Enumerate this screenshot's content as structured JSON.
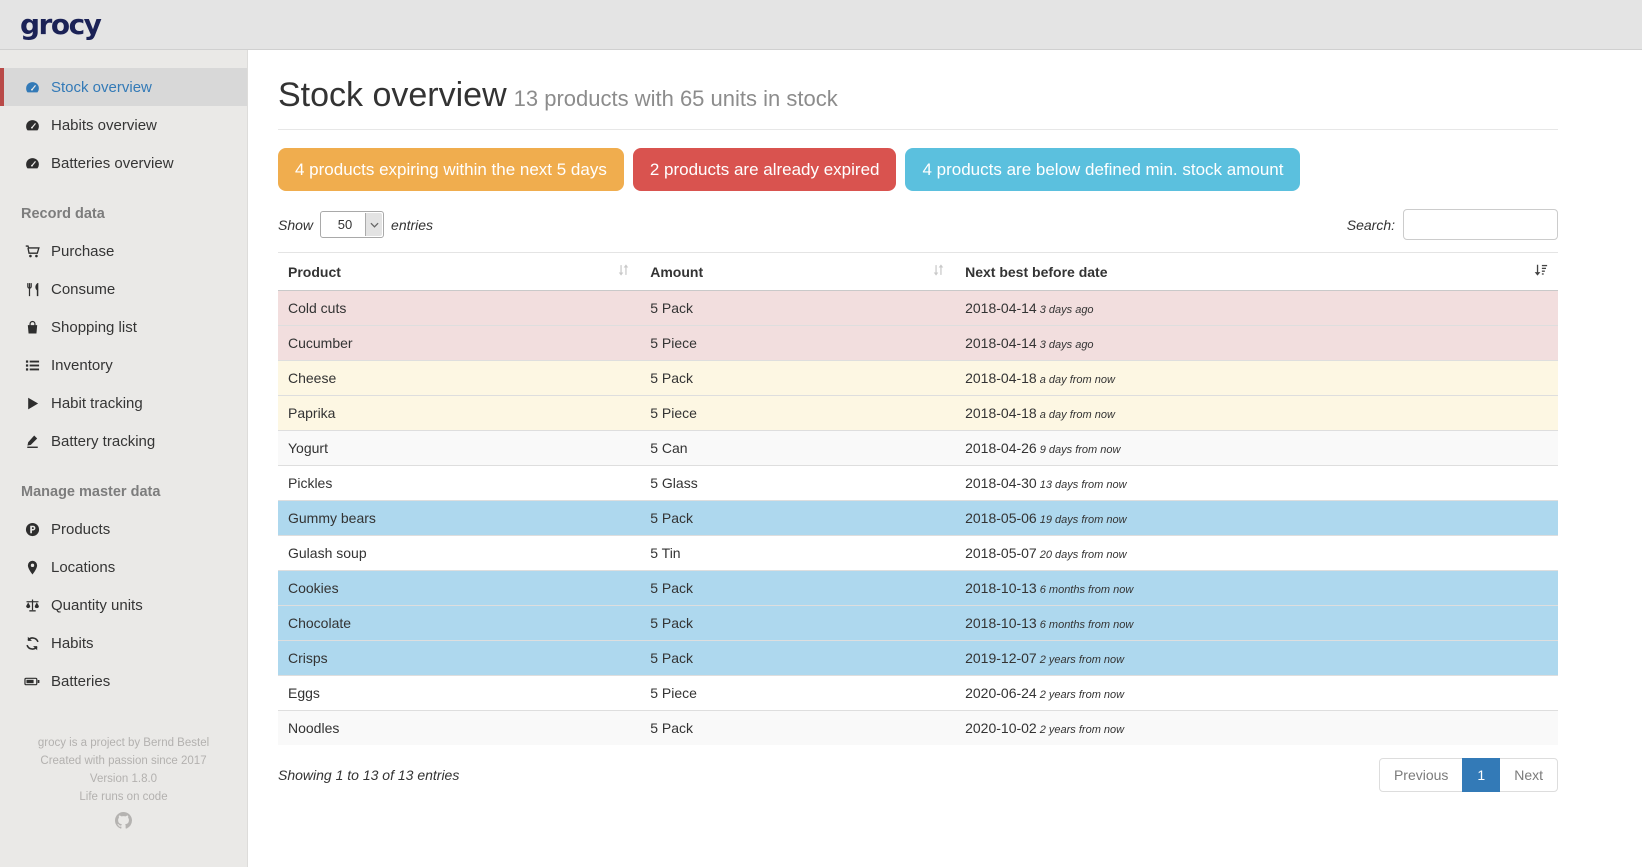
{
  "app": {
    "logo": "grocy"
  },
  "sidebar": {
    "entries": [
      {
        "kind": "item",
        "label": "Stock overview",
        "icon": "tachometer-icon",
        "active": true
      },
      {
        "kind": "item",
        "label": "Habits overview",
        "icon": "tachometer-icon"
      },
      {
        "kind": "item",
        "label": "Batteries overview",
        "icon": "tachometer-icon"
      },
      {
        "kind": "section",
        "label": "Record data"
      },
      {
        "kind": "item",
        "label": "Purchase",
        "icon": "cart-icon"
      },
      {
        "kind": "item",
        "label": "Consume",
        "icon": "utensils-icon"
      },
      {
        "kind": "item",
        "label": "Shopping list",
        "icon": "shopping-bag-icon"
      },
      {
        "kind": "item",
        "label": "Inventory",
        "icon": "list-icon"
      },
      {
        "kind": "item",
        "label": "Habit tracking",
        "icon": "play-icon"
      },
      {
        "kind": "item",
        "label": "Battery tracking",
        "icon": "pen-icon"
      },
      {
        "kind": "section",
        "label": "Manage master data"
      },
      {
        "kind": "item",
        "label": "Products",
        "icon": "product-p-icon"
      },
      {
        "kind": "item",
        "label": "Locations",
        "icon": "map-marker-icon"
      },
      {
        "kind": "item",
        "label": "Quantity units",
        "icon": "balance-scale-icon"
      },
      {
        "kind": "item",
        "label": "Habits",
        "icon": "sync-icon"
      },
      {
        "kind": "item",
        "label": "Batteries",
        "icon": "battery-icon"
      }
    ],
    "footer": {
      "lines": [
        "grocy is a project by Bernd Bestel",
        "Created with passion since 2017",
        "Version 1.8.0",
        "Life runs on code"
      ],
      "github_icon": "github-icon"
    }
  },
  "header": {
    "title": "Stock overview",
    "subtitle": "13 products with 65 units in stock"
  },
  "alerts": [
    {
      "name": "expiring-soon-button",
      "label": "4 products expiring within the next 5 days",
      "color": "#f0ad4e"
    },
    {
      "name": "expired-button",
      "label": "2 products are already expired",
      "color": "#d9534f"
    },
    {
      "name": "below-min-stock-button",
      "label": "4 products are below defined min. stock amount",
      "color": "#5bc0de"
    }
  ],
  "table_controls": {
    "show_label": "Show",
    "page_size": "50",
    "entries_label": "entries",
    "search_label": "Search:",
    "search_value": ""
  },
  "table": {
    "columns": [
      {
        "label": "Product",
        "sort_icon": "sort-both-icon"
      },
      {
        "label": "Amount",
        "sort_icon": "sort-both-icon"
      },
      {
        "label": "Next best before date",
        "sort_icon": "sort-amount-down-icon"
      }
    ],
    "rows": [
      {
        "product": "Cold cuts",
        "amount": "5 Pack",
        "date": "2018-04-14",
        "relative": "3 days ago",
        "status": "expired"
      },
      {
        "product": "Cucumber",
        "amount": "5 Piece",
        "date": "2018-04-14",
        "relative": "3 days ago",
        "status": "expired"
      },
      {
        "product": "Cheese",
        "amount": "5 Pack",
        "date": "2018-04-18",
        "relative": "a day from now",
        "status": "expiring"
      },
      {
        "product": "Paprika",
        "amount": "5 Piece",
        "date": "2018-04-18",
        "relative": "a day from now",
        "status": "expiring"
      },
      {
        "product": "Yogurt",
        "amount": "5 Can",
        "date": "2018-04-26",
        "relative": "9 days from now",
        "status": "ok"
      },
      {
        "product": "Pickles",
        "amount": "5 Glass",
        "date": "2018-04-30",
        "relative": "13 days from now",
        "status": "ok"
      },
      {
        "product": "Gummy bears",
        "amount": "5 Pack",
        "date": "2018-05-06",
        "relative": "19 days from now",
        "status": "below-min"
      },
      {
        "product": "Gulash soup",
        "amount": "5 Tin",
        "date": "2018-05-07",
        "relative": "20 days from now",
        "status": "ok"
      },
      {
        "product": "Cookies",
        "amount": "5 Pack",
        "date": "2018-10-13",
        "relative": "6 months from now",
        "status": "below-min"
      },
      {
        "product": "Chocolate",
        "amount": "5 Pack",
        "date": "2018-10-13",
        "relative": "6 months from now",
        "status": "below-min"
      },
      {
        "product": "Crisps",
        "amount": "5 Pack",
        "date": "2019-12-07",
        "relative": "2 years from now",
        "status": "below-min"
      },
      {
        "product": "Eggs",
        "amount": "5 Piece",
        "date": "2020-06-24",
        "relative": "2 years from now",
        "status": "ok"
      },
      {
        "product": "Noodles",
        "amount": "5 Pack",
        "date": "2020-10-02",
        "relative": "2 years from now",
        "status": "ok"
      }
    ]
  },
  "table_footer": {
    "showing": "Showing 1 to 13 of 13 entries",
    "pagination": {
      "previous": "Previous",
      "page": "1",
      "next": "Next"
    }
  },
  "colors": {
    "accent_active": "#337ab7",
    "active_border": "#b94a48",
    "warning": "#f0ad4e",
    "danger": "#d9534f",
    "info": "#5bc0de",
    "row_expired": "#f2dede",
    "row_expiring": "#fdf7e3",
    "row_below_min": "#aed8ee"
  }
}
